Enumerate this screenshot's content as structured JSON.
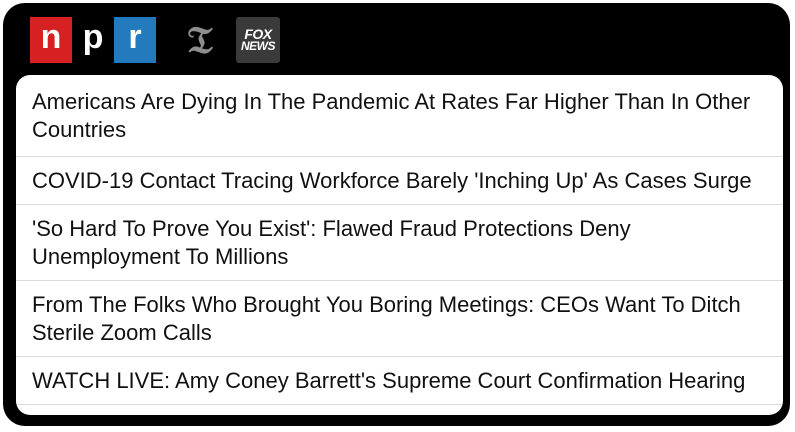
{
  "sources": [
    {
      "name": "npr",
      "letters": [
        "n",
        "p",
        "r"
      ],
      "colors": [
        "#d62021",
        "#000000",
        "#237bbd"
      ]
    },
    {
      "name": "new-york-times",
      "glyph": "𝔗"
    },
    {
      "name": "fox-news",
      "top": "FOX",
      "bottom": "NEWS"
    }
  ],
  "headlines": [
    "Americans Are Dying In The Pandemic At Rates Far Higher Than In Other Countries",
    "COVID-19 Contact Tracing Workforce Barely 'Inching Up' As Cases Surge",
    "'So Hard To Prove You Exist': Flawed Fraud Protections Deny Unemployment To Millions",
    "From The Folks Who Brought You Boring Meetings: CEOs Want To Ditch Sterile Zoom Calls",
    "WATCH LIVE: Amy Coney Barrett's Supreme Court Confirmation Hearing"
  ]
}
